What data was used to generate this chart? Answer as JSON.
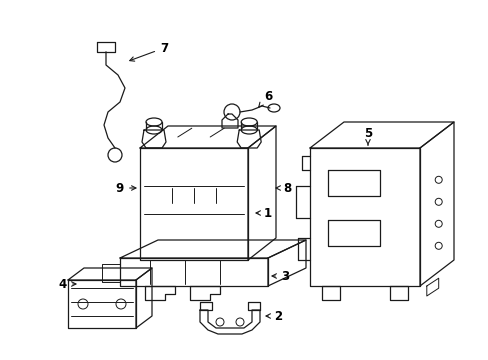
{
  "background_color": "#ffffff",
  "line_color": "#1a1a1a",
  "label_color": "#000000",
  "figsize": [
    4.89,
    3.6
  ],
  "dpi": 100
}
